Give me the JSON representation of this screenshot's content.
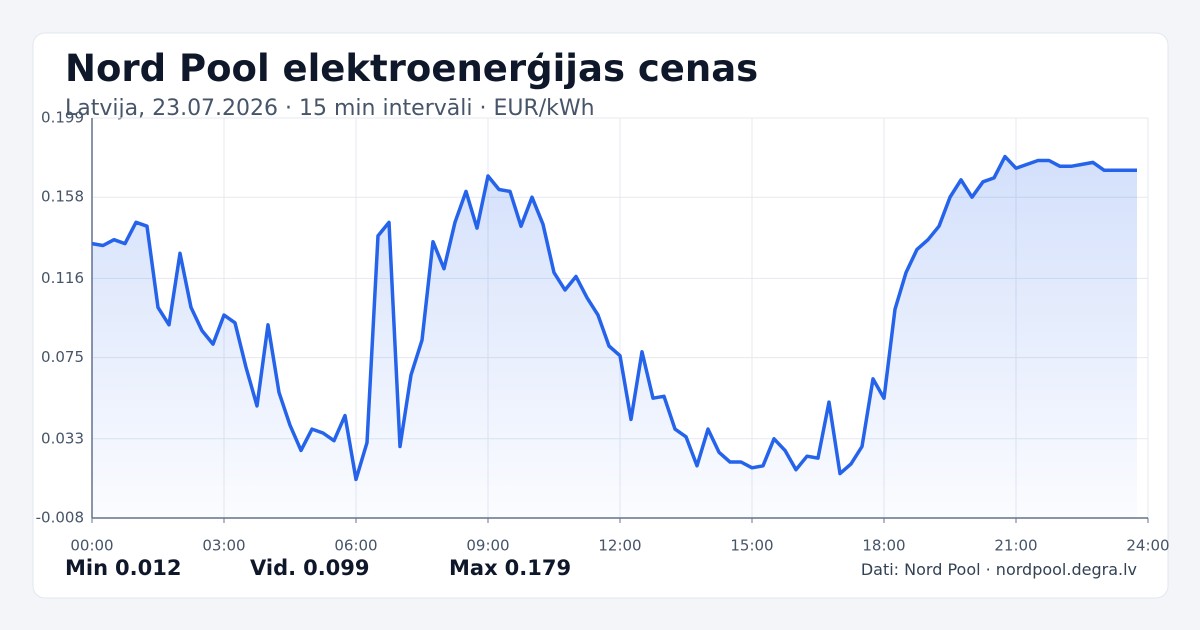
{
  "chart_data": {
    "type": "line",
    "title": "Nord Pool elektroenerģijas cenas",
    "subtitle": "Latvija, 23.07.2026 · 15 min intervāli · EUR/kWh",
    "x": [
      0,
      0.25,
      0.5,
      0.75,
      1,
      1.25,
      1.5,
      1.75,
      2,
      2.25,
      2.5,
      2.75,
      3,
      3.25,
      3.5,
      3.75,
      4,
      4.25,
      4.5,
      4.75,
      5,
      5.25,
      5.5,
      5.75,
      6,
      6.25,
      6.5,
      6.75,
      7,
      7.25,
      7.5,
      7.75,
      8,
      8.25,
      8.5,
      8.75,
      9,
      9.25,
      9.5,
      9.75,
      10,
      10.25,
      10.5,
      10.75,
      11,
      11.25,
      11.5,
      11.75,
      12,
      12.25,
      12.5,
      12.75,
      13,
      13.25,
      13.5,
      13.75,
      14,
      14.25,
      14.5,
      14.75,
      15,
      15.25,
      15.5,
      15.75,
      16,
      16.25,
      16.5,
      16.75,
      17,
      17.25,
      17.5,
      17.75,
      18,
      18.25,
      18.5,
      18.75,
      19,
      19.25,
      19.5,
      19.75,
      20,
      20.25,
      20.5,
      20.75,
      21,
      21.25,
      21.5,
      21.75,
      22,
      22.25,
      22.5,
      22.75,
      23,
      23.25,
      23.5,
      23.75
    ],
    "values": [
      0.134,
      0.133,
      0.136,
      0.134,
      0.145,
      0.143,
      0.101,
      0.092,
      0.129,
      0.101,
      0.089,
      0.082,
      0.097,
      0.093,
      0.07,
      0.05,
      0.092,
      0.057,
      0.04,
      0.027,
      0.038,
      0.036,
      0.032,
      0.045,
      0.012,
      0.031,
      0.138,
      0.145,
      0.029,
      0.066,
      0.084,
      0.135,
      0.121,
      0.145,
      0.161,
      0.142,
      0.169,
      0.162,
      0.161,
      0.143,
      0.158,
      0.144,
      0.119,
      0.11,
      0.117,
      0.106,
      0.097,
      0.081,
      0.076,
      0.043,
      0.078,
      0.054,
      0.055,
      0.038,
      0.034,
      0.019,
      0.038,
      0.026,
      0.021,
      0.021,
      0.018,
      0.019,
      0.033,
      0.027,
      0.017,
      0.024,
      0.023,
      0.052,
      0.015,
      0.02,
      0.029,
      0.064,
      0.054,
      0.1,
      0.119,
      0.131,
      0.136,
      0.143,
      0.158,
      0.167,
      0.158,
      0.166,
      0.168,
      0.179,
      0.173,
      0.175,
      0.177,
      0.177,
      0.174,
      0.174,
      0.175,
      0.176,
      0.172,
      0.172,
      0.172,
      0.172
    ],
    "color": "#2563eb",
    "xlim": [
      0,
      24
    ],
    "xticks": [
      {
        "value": 0,
        "label": "00:00"
      },
      {
        "value": 3,
        "label": "03:00"
      },
      {
        "value": 6,
        "label": "06:00"
      },
      {
        "value": 9,
        "label": "09:00"
      },
      {
        "value": 12,
        "label": "12:00"
      },
      {
        "value": 15,
        "label": "15:00"
      },
      {
        "value": 18,
        "label": "18:00"
      },
      {
        "value": 21,
        "label": "21:00"
      },
      {
        "value": 24,
        "label": "24:00"
      }
    ],
    "ylim": [
      -0.008,
      0.199
    ],
    "yticks": [
      -0.008,
      0.033,
      0.075,
      0.116,
      0.158,
      0.199
    ],
    "grid": true,
    "stats": [
      {
        "label": "Min",
        "value": 0.012
      },
      {
        "label": "Vid.",
        "value": 0.099
      },
      {
        "label": "Max",
        "value": 0.179
      }
    ],
    "source": "Dati: Nord Pool · nordpool.degra.lv"
  }
}
